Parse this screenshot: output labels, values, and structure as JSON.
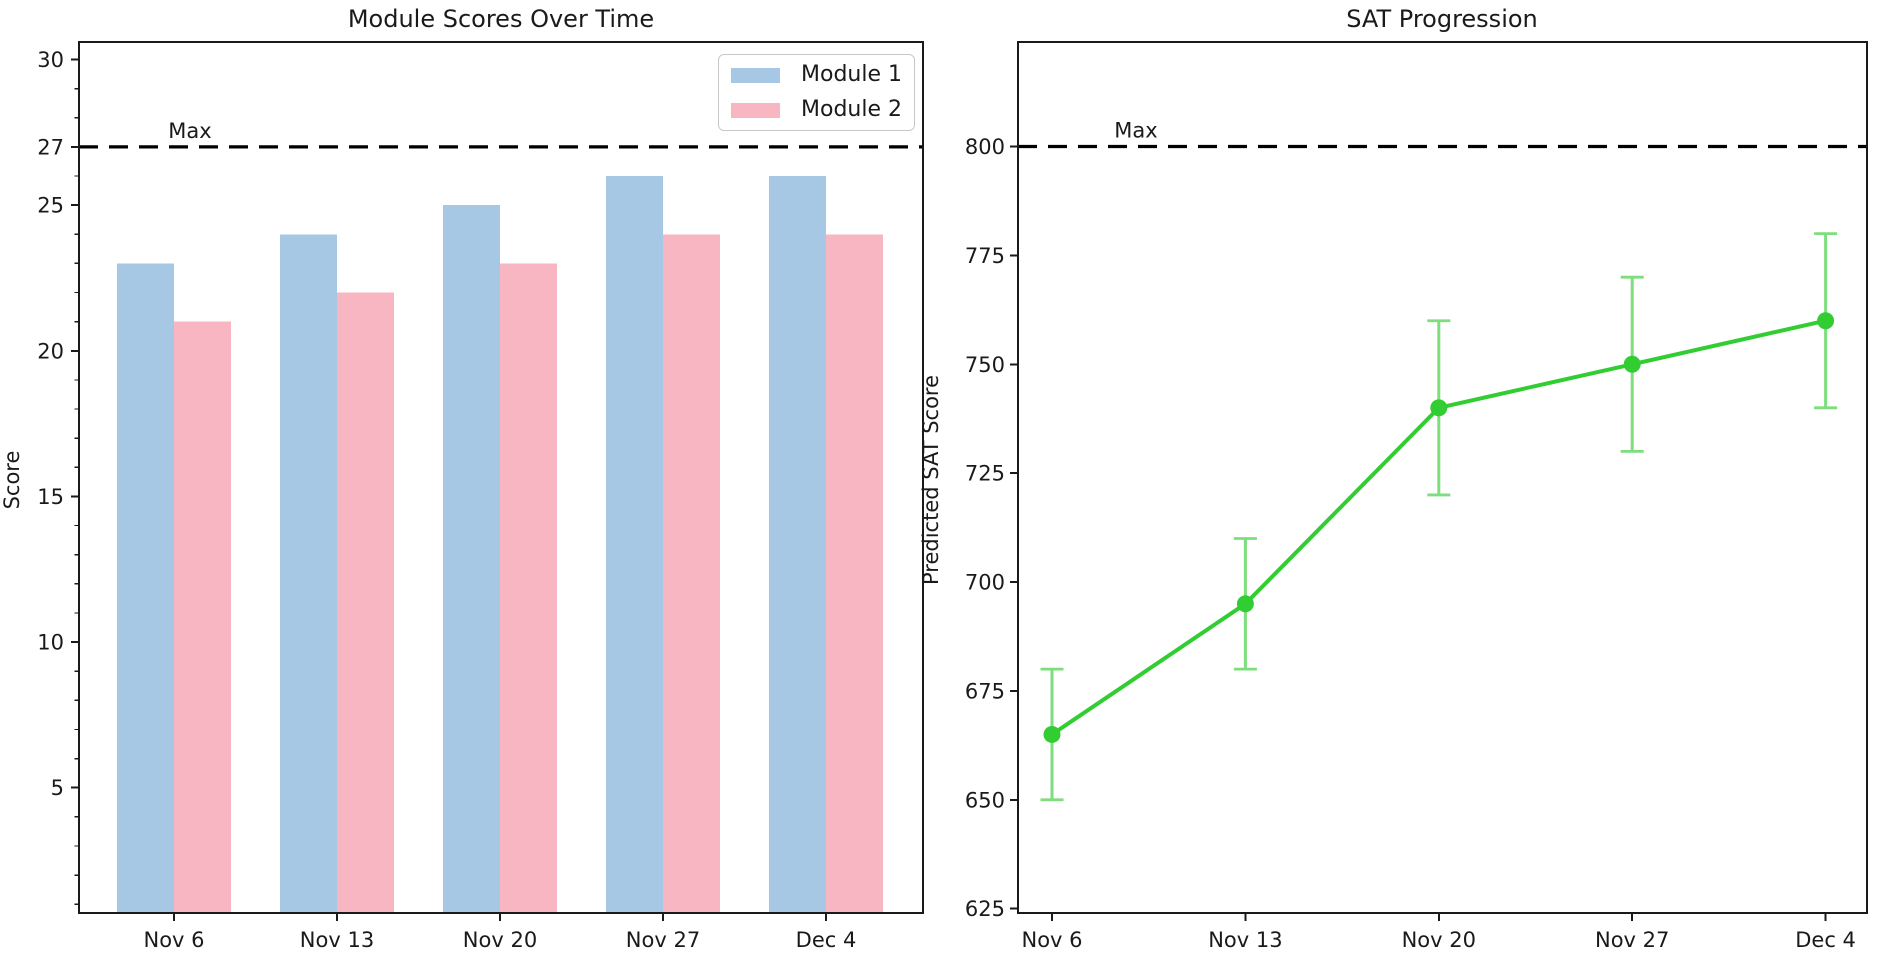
{
  "chart_data": [
    {
      "type": "bar",
      "title": "Module Scores Over Time",
      "ylabel": "Score",
      "categories": [
        "Nov 6",
        "Nov 13",
        "Nov 20",
        "Nov 27",
        "Dec 4"
      ],
      "series": [
        {
          "name": "Module 1",
          "color": "#a6c8e4",
          "values": [
            23,
            24,
            25,
            26,
            26
          ]
        },
        {
          "name": "Module 2",
          "color": "#f7b6c2",
          "values": [
            21,
            22,
            23,
            24,
            24
          ]
        }
      ],
      "max_line": {
        "value": 27,
        "label": "Max",
        "color": "#000000",
        "style": "dashed"
      },
      "yticks": [
        5,
        10,
        15,
        20,
        25,
        27,
        30
      ],
      "ytick_labels": [
        "5",
        "10",
        "15",
        "20",
        "25",
        "27",
        "30"
      ],
      "minor_tick_step": 1,
      "ylim": [
        0.7,
        30.6
      ],
      "bar_width_fraction": 0.35,
      "legend": {
        "position": "upper right"
      },
      "grid": false
    },
    {
      "type": "line",
      "title": "SAT Progression",
      "ylabel": "Predicted SAT Score",
      "categories": [
        "Nov 6",
        "Nov 13",
        "Nov 20",
        "Nov 27",
        "Dec 4"
      ],
      "series": [
        {
          "name": "Predicted SAT Score",
          "color": "#32cd32",
          "error_color": "#7dde7d",
          "marker": "circle",
          "values": [
            665,
            695,
            740,
            750,
            760
          ],
          "yerr": [
            15,
            15,
            20,
            20,
            20
          ]
        }
      ],
      "max_line": {
        "value": 800,
        "label": "Max",
        "color": "#000000",
        "style": "dashed"
      },
      "yticks": [
        625,
        650,
        675,
        700,
        725,
        750,
        775,
        800
      ],
      "ytick_labels": [
        "625",
        "650",
        "675",
        "700",
        "725",
        "750",
        "775",
        "800"
      ],
      "ylim": [
        624,
        824
      ],
      "grid": false
    }
  ]
}
